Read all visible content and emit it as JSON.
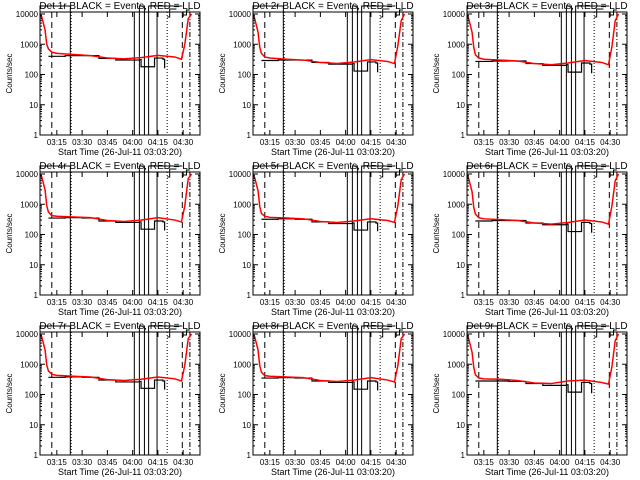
{
  "chart_data": {
    "type": "line",
    "layout": "3x3 grid",
    "ylabel": "Counts/sec",
    "xlabel": "Start Time (26-Jul-11 03:03:20)",
    "yscale": "log",
    "ylim": [
      1,
      10000
    ],
    "yticks": [
      "10000",
      "1000",
      "100",
      "10",
      "1"
    ],
    "ytick_values": [
      10000,
      1000,
      100,
      10,
      1
    ],
    "xlim_minutes_after_0300": [
      5,
      100
    ],
    "xticks": [
      "03:15",
      "03:30",
      "03:45",
      "04:00",
      "04:15",
      "04:30"
    ],
    "xtick_values_minutes_after_0300": [
      15,
      30,
      45,
      60,
      75,
      90
    ],
    "series_colors": {
      "events": "#000000",
      "lld": "#ff0000"
    },
    "legend": "in title: BLACK = Events, RED = LLD",
    "markers_minutes_after_0300": {
      "solid": [
        23,
        61,
        64,
        67,
        69.5,
        74.5
      ],
      "dashed": [
        12,
        89.5
      ],
      "dotted": [
        80.5,
        23.5
      ],
      "dashdot": [
        94
      ]
    },
    "red_x": [
      5,
      6,
      8,
      9,
      10,
      12,
      15,
      25,
      35,
      45,
      55,
      65,
      75,
      85,
      89,
      91,
      93,
      95
    ],
    "black_x": [
      10,
      20,
      30,
      40,
      50,
      60,
      64,
      65,
      72,
      73,
      78,
      79
    ],
    "panels": [
      {
        "title": "Det 1r BLACK = Events, RED = LLD",
        "red": [
          10000,
          8000,
          3000,
          1000,
          700,
          550,
          500,
          460,
          420,
          350,
          330,
          360,
          430,
          380,
          320,
          1000,
          7000,
          10000
        ],
        "black": [
          400,
          420,
          420,
          340,
          300,
          300,
          310,
          180,
          180,
          350,
          320,
          190
        ]
      },
      {
        "title": "Det 2r BLACK = Events, RED = LLD",
        "red": [
          10000,
          7000,
          2500,
          800,
          500,
          380,
          350,
          320,
          300,
          250,
          230,
          260,
          310,
          270,
          230,
          900,
          6000,
          10000
        ],
        "black": [
          290,
          300,
          300,
          250,
          220,
          220,
          230,
          130,
          130,
          260,
          240,
          140
        ]
      },
      {
        "title": "Det 3r BLACK = Events, RED = LLD",
        "red": [
          10000,
          7000,
          2500,
          800,
          450,
          350,
          320,
          300,
          280,
          230,
          210,
          240,
          290,
          250,
          210,
          800,
          6000,
          10000
        ],
        "black": [
          270,
          280,
          280,
          230,
          200,
          200,
          210,
          120,
          120,
          240,
          220,
          130
        ]
      },
      {
        "title": "Det 4r BLACK = Events, RED = LLD",
        "red": [
          10000,
          8000,
          3000,
          900,
          550,
          420,
          400,
          380,
          360,
          290,
          270,
          300,
          360,
          300,
          260,
          900,
          7000,
          10000
        ],
        "black": [
          350,
          360,
          350,
          280,
          250,
          250,
          260,
          150,
          150,
          280,
          260,
          160
        ]
      },
      {
        "title": "Det 5r BLACK = Events, RED = LLD",
        "red": [
          10000,
          7500,
          2800,
          850,
          500,
          400,
          370,
          350,
          330,
          270,
          250,
          280,
          330,
          290,
          250,
          900,
          6500,
          10000
        ],
        "black": [
          320,
          330,
          320,
          260,
          230,
          230,
          240,
          140,
          140,
          260,
          240,
          150
        ]
      },
      {
        "title": "Det 6r BLACK = Events, RED = LLD",
        "red": [
          10000,
          7000,
          2600,
          800,
          470,
          360,
          330,
          310,
          290,
          240,
          220,
          250,
          300,
          260,
          220,
          850,
          6000,
          10000
        ],
        "black": [
          280,
          290,
          290,
          240,
          210,
          210,
          220,
          125,
          125,
          250,
          230,
          135
        ]
      },
      {
        "title": "Det 7r BLACK = Events, RED = LLD",
        "red": [
          10000,
          8000,
          3000,
          950,
          600,
          470,
          430,
          400,
          380,
          310,
          290,
          320,
          380,
          330,
          280,
          950,
          7000,
          10000
        ],
        "black": [
          370,
          380,
          370,
          300,
          260,
          260,
          270,
          160,
          160,
          300,
          280,
          170
        ]
      },
      {
        "title": "Det 8r BLACK = Events, RED = LLD",
        "red": [
          10000,
          8000,
          3000,
          900,
          550,
          420,
          400,
          380,
          360,
          290,
          270,
          300,
          360,
          300,
          260,
          900,
          7000,
          10000
        ],
        "black": [
          350,
          360,
          350,
          280,
          250,
          250,
          260,
          150,
          150,
          280,
          260,
          160
        ]
      },
      {
        "title": "Det 9r BLACK = Events, RED = LLD",
        "red": [
          10000,
          7000,
          2500,
          800,
          450,
          350,
          330,
          320,
          290,
          240,
          230,
          280,
          300,
          250,
          220,
          800,
          6000,
          10000
        ],
        "black": [
          280,
          280,
          270,
          230,
          200,
          200,
          210,
          120,
          120,
          250,
          230,
          130
        ]
      }
    ]
  }
}
